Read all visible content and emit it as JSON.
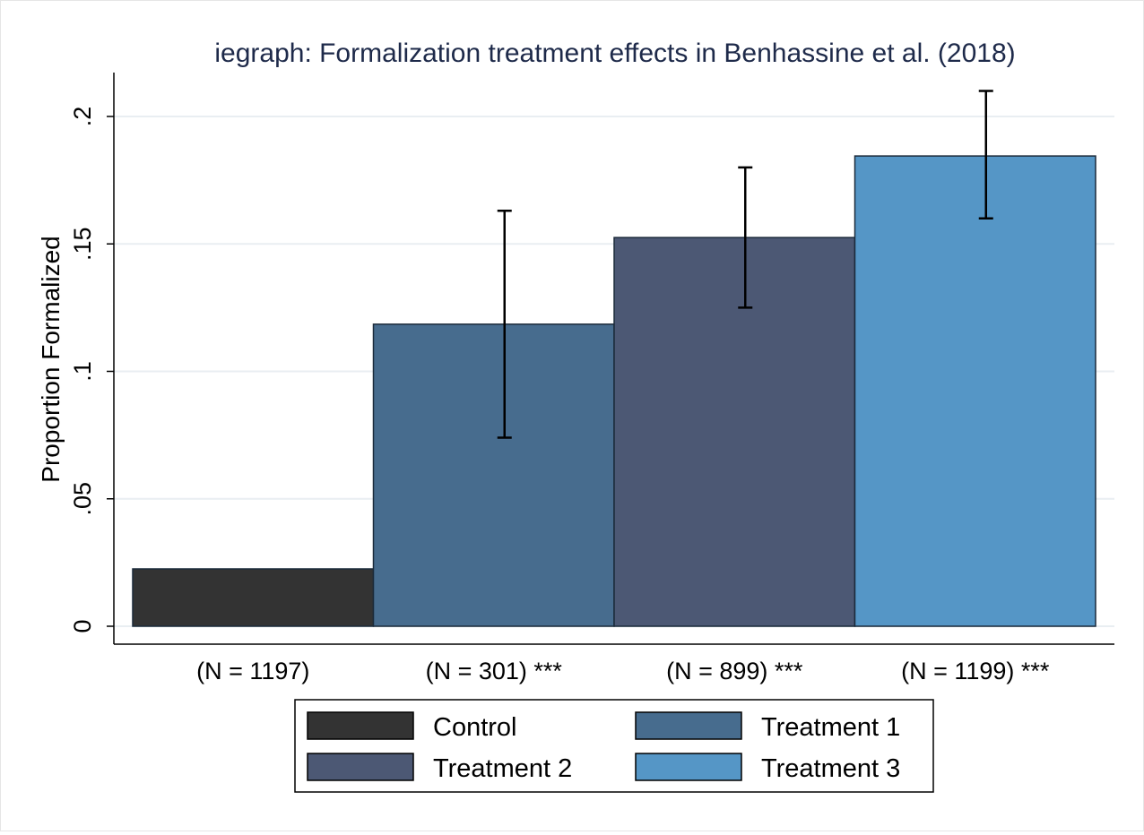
{
  "chart_data": {
    "type": "bar",
    "title": "iegraph: Formalization treatment effects in Benhassine et al. (2018)",
    "ylabel": "Proportion Formalized",
    "xlabel": "",
    "ylim": [
      0,
      0.2165
    ],
    "grid": true,
    "yticks": [
      {
        "value": 0,
        "label": "0"
      },
      {
        "value": 0.05,
        "label": ".05"
      },
      {
        "value": 0.1,
        "label": ".1"
      },
      {
        "value": 0.15,
        "label": ".15"
      },
      {
        "value": 0.2,
        "label": ".2"
      }
    ],
    "categories": [
      "(N = 1197)",
      "(N = 301) ***",
      "(N = 899) ***",
      "(N = 1199) ***"
    ],
    "series": [
      {
        "name": "Control",
        "value": 0.0225,
        "ci": null,
        "color": "#333333"
      },
      {
        "name": "Treatment 1",
        "value": 0.1185,
        "ci": [
          0.074,
          0.163
        ],
        "color": "#476c8e"
      },
      {
        "name": "Treatment 2",
        "value": 0.1525,
        "ci": [
          0.125,
          0.18
        ],
        "color": "#4c5874"
      },
      {
        "name": "Treatment 3",
        "value": 0.1845,
        "ci": [
          0.16,
          0.21
        ],
        "color": "#5596c6"
      }
    ],
    "legend": {
      "placement": "bottom",
      "columns": 2,
      "entries": [
        "Control",
        "Treatment 1",
        "Treatment 2",
        "Treatment 3"
      ]
    }
  }
}
